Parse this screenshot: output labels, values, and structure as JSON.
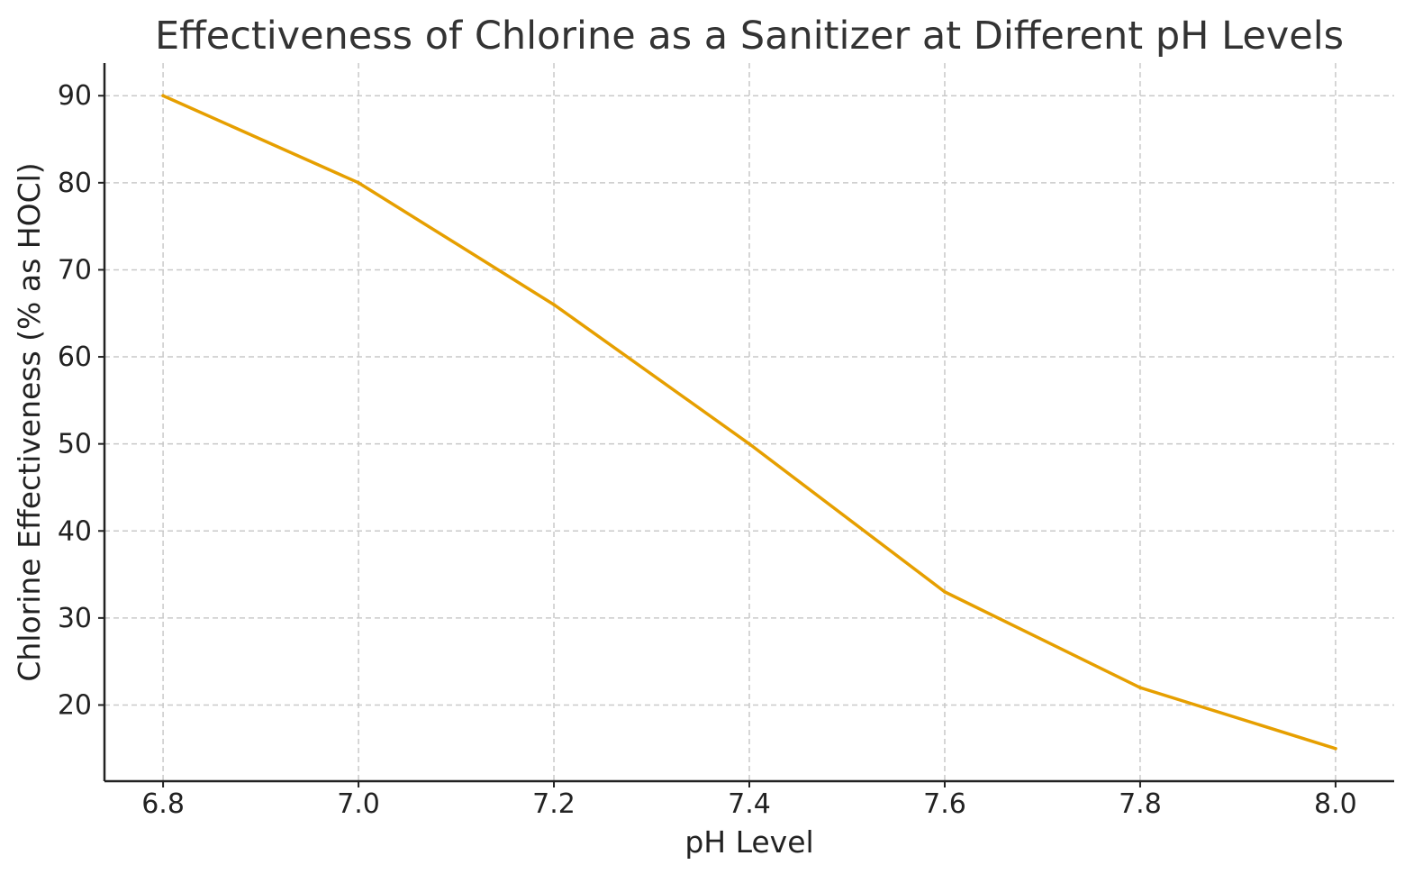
{
  "chart_data": {
    "type": "line",
    "title": "Effectiveness of Chlorine as a Sanitizer at Different pH Levels",
    "xlabel": "pH Level",
    "ylabel": "Chlorine Effectiveness (% as HOCl)",
    "x": [
      6.8,
      7.0,
      7.2,
      7.4,
      7.6,
      7.8,
      8.0
    ],
    "series": [
      {
        "name": "Chlorine Effectiveness",
        "values": [
          90,
          80,
          66,
          50,
          33,
          22,
          15
        ],
        "color": "#E69F00"
      }
    ],
    "xticks": [
      6.8,
      7.0,
      7.2,
      7.4,
      7.6,
      7.8,
      8.0
    ],
    "xtick_labels": [
      "6.8",
      "7.0",
      "7.2",
      "7.4",
      "7.6",
      "7.8",
      "8.0"
    ],
    "yticks": [
      20,
      30,
      40,
      50,
      60,
      70,
      80,
      90
    ],
    "ytick_labels": [
      "20",
      "30",
      "40",
      "50",
      "60",
      "70",
      "80",
      "90"
    ],
    "xlim": [
      6.74,
      8.06
    ],
    "ylim": [
      11.25,
      93.75
    ],
    "grid": true,
    "legend": "none"
  }
}
